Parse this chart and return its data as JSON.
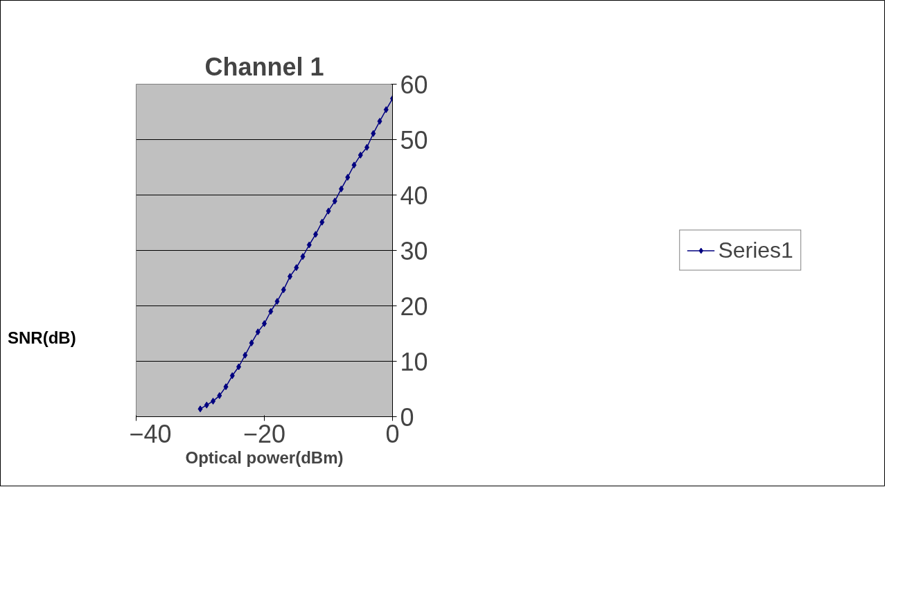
{
  "chart_data": {
    "type": "line",
    "title": "Channel 1",
    "xlabel": "Optical power(dBm)",
    "ylabel": "SNR(dB)",
    "x": [
      -30,
      -29,
      -28,
      -27,
      -26,
      -25,
      -24,
      -23,
      -22,
      -21,
      -20,
      -19,
      -18,
      -17,
      -16,
      -15,
      -14,
      -13,
      -12,
      -11,
      -10,
      -9,
      -8,
      -7,
      -6,
      -5,
      -4,
      -3,
      -2,
      -1,
      0
    ],
    "series": [
      {
        "name": "Series1",
        "color": "#000080",
        "values": [
          1.4,
          2.1,
          2.8,
          3.8,
          5.4,
          7.4,
          9.0,
          11.1,
          13.3,
          15.3,
          16.8,
          19.0,
          20.8,
          22.9,
          25.3,
          26.9,
          28.9,
          31.0,
          32.9,
          35.1,
          37.1,
          38.9,
          41.1,
          43.2,
          45.4,
          47.2,
          48.6,
          51.1,
          53.3,
          55.4,
          57.4
        ]
      }
    ],
    "xlim": [
      -40,
      0
    ],
    "xticks": [
      -40,
      -20,
      0
    ],
    "ylim": [
      0,
      60
    ],
    "yticks": [
      0,
      10,
      20,
      30,
      40,
      50,
      60
    ],
    "grid": "y",
    "legend": "right",
    "marker": "diamond",
    "line_style": "solid"
  }
}
